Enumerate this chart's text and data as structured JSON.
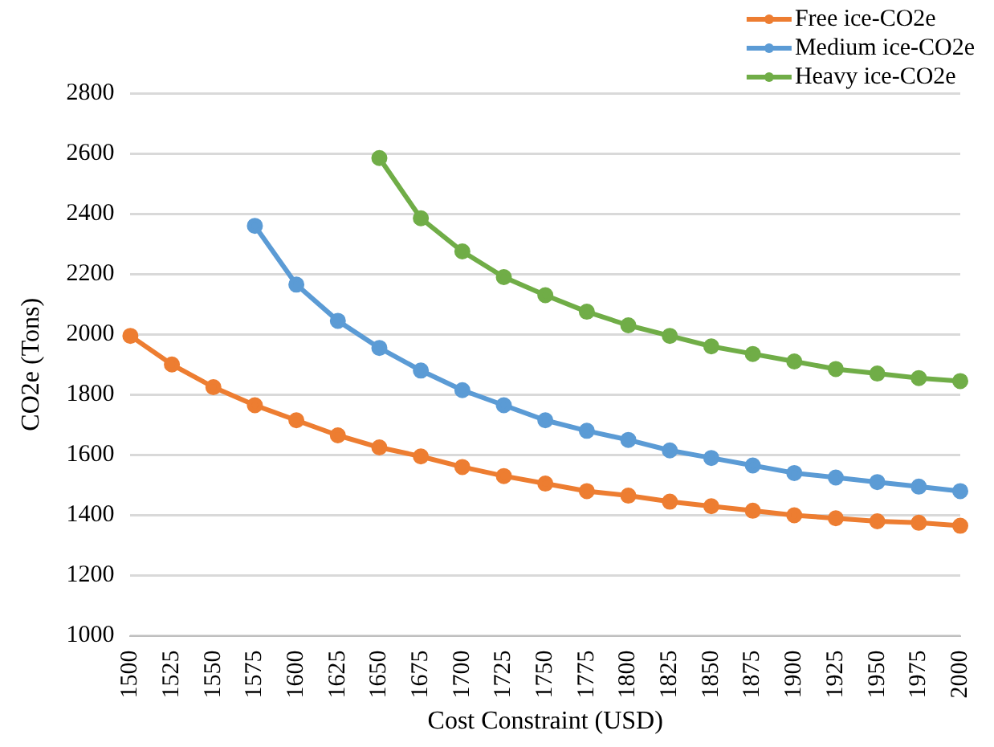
{
  "chart_data": {
    "type": "line",
    "xlabel": "Cost Constraint (USD)",
    "ylabel": "CO2e (Tons)",
    "categories": [
      "1500",
      "1525",
      "1550",
      "1575",
      "1600",
      "1625",
      "1650",
      "1675",
      "1700",
      "1725",
      "1750",
      "1775",
      "1800",
      "1825",
      "1850",
      "1875",
      "1900",
      "1925",
      "1950",
      "1975",
      "2000"
    ],
    "series": [
      {
        "name": "Free ice-CO2e",
        "color": "#ed7d31",
        "values": [
          1995,
          1900,
          1825,
          1765,
          1715,
          1665,
          1625,
          1595,
          1560,
          1530,
          1505,
          1480,
          1465,
          1445,
          1430,
          1415,
          1400,
          1390,
          1380,
          1375,
          1365
        ]
      },
      {
        "name": "Medium ice-CO2e",
        "color": "#5b9bd5",
        "values": [
          null,
          null,
          null,
          2360,
          2165,
          2045,
          1955,
          1880,
          1815,
          1765,
          1715,
          1680,
          1650,
          1615,
          1590,
          1565,
          1540,
          1525,
          1510,
          1495,
          1480
        ]
      },
      {
        "name": "Heavy ice-CO2e",
        "color": "#70ad47",
        "values": [
          null,
          null,
          null,
          null,
          null,
          null,
          2585,
          2385,
          2275,
          2190,
          2130,
          2075,
          2030,
          1995,
          1960,
          1935,
          1910,
          1885,
          1870,
          1855,
          1845
        ]
      }
    ],
    "ylim": [
      1000,
      2800
    ],
    "yticks": [
      1000,
      1200,
      1400,
      1600,
      1800,
      2000,
      2200,
      2400,
      2600,
      2800
    ],
    "grid": "y",
    "legend": "top right",
    "marker": "circle",
    "line_style": "solid"
  }
}
